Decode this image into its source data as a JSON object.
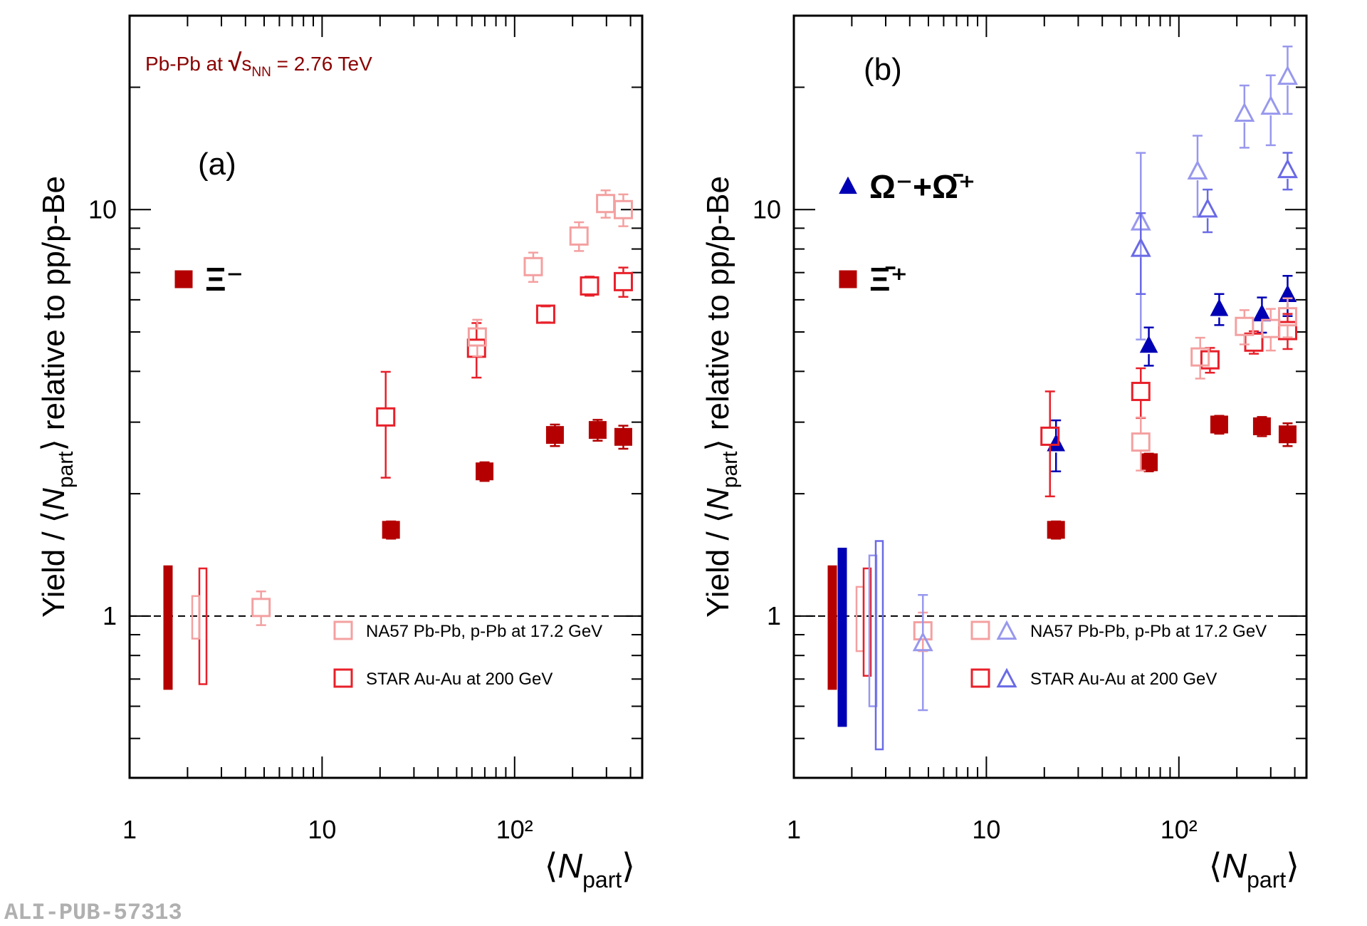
{
  "footer": "ALI-PUB-57313",
  "chart_data": [
    {
      "type": "scatter",
      "panel_label": "(a)",
      "annotation": [
        "Pb-Pb at ",
        "√",
        "s",
        "NN",
        " = 2.76 TeV"
      ],
      "xlabel": [
        "⟨",
        "N",
        "part",
        "⟩"
      ],
      "ylabel": [
        "Yield / ⟨",
        "N",
        "part",
        "⟩ relative to pp/p-Be"
      ],
      "log_x": true,
      "log_y": true,
      "xlim": [
        1,
        460
      ],
      "ylim": [
        0.4,
        30
      ],
      "xticks": [
        1,
        10,
        {
          "value": 100,
          "label": "10²"
        }
      ],
      "yticks": [
        1,
        10
      ],
      "xminor_ticks": [
        2,
        3,
        4,
        5,
        6,
        7,
        8,
        9,
        20,
        30,
        40,
        50,
        60,
        70,
        80,
        90,
        200,
        300,
        400
      ],
      "yminor_ticks": [
        0.5,
        0.6,
        0.7,
        0.8,
        0.9,
        2,
        3,
        4,
        5,
        6,
        7,
        8,
        9,
        20
      ],
      "reference_line": 1,
      "normalization": [
        {
          "color": "#b40000",
          "filled": true,
          "low": 0.66,
          "high": 1.33
        },
        {
          "color": "#e8202a",
          "filled": false,
          "low": 0.68,
          "high": 1.31
        },
        {
          "color": "#f4a0a0",
          "filled": false,
          "low": 0.88,
          "high": 1.12
        }
      ],
      "series": [
        {
          "name": "Ξ⁻",
          "color": "#b40000",
          "marker": "square",
          "filled": true,
          "x": [
            22.8,
            69.8,
            162,
            270,
            367
          ],
          "values": [
            1.63,
            2.27,
            2.79,
            2.87,
            2.76
          ],
          "errors": [
            0.08,
            0.12,
            0.17,
            0.17,
            0.18
          ]
        },
        {
          "name": "STAR Au-Au at 200 GeV",
          "color": "#e8202a",
          "marker": "square",
          "filled": false,
          "x": [
            21.4,
            63.4,
            145,
            245,
            367
          ],
          "values": [
            3.09,
            4.56,
            5.53,
            6.49,
            6.65
          ],
          "errors": [
            0.9,
            0.7,
            0.25,
            0.35,
            0.55
          ]
        },
        {
          "name": "NA57 Pb-Pb, p-Pb at 17.2 GeV",
          "color": "#f4a0a0",
          "marker": "square",
          "filled": false,
          "x": [
            4.82,
            64,
            125,
            216,
            297,
            367
          ],
          "values": [
            1.05,
            4.86,
            7.24,
            8.61,
            10.35,
            10.0
          ],
          "errors": [
            0.1,
            0.5,
            0.6,
            0.7,
            0.8,
            0.9
          ]
        }
      ]
    },
    {
      "type": "scatter",
      "panel_label": "(b)",
      "xlabel": [
        "⟨",
        "N",
        "part",
        "⟩"
      ],
      "ylabel": [
        "Yield / ⟨",
        "N",
        "part",
        "⟩ relative to pp/p-Be"
      ],
      "log_x": true,
      "log_y": true,
      "xlim": [
        1,
        460
      ],
      "ylim": [
        0.4,
        30
      ],
      "xticks": [
        1,
        10,
        {
          "value": 100,
          "label": "10²"
        }
      ],
      "yticks": [
        1,
        10
      ],
      "xminor_ticks": [
        2,
        3,
        4,
        5,
        6,
        7,
        8,
        9,
        20,
        30,
        40,
        50,
        60,
        70,
        80,
        90,
        200,
        300,
        400
      ],
      "yminor_ticks": [
        0.5,
        0.6,
        0.7,
        0.8,
        0.9,
        2,
        3,
        4,
        5,
        6,
        7,
        8,
        9,
        20
      ],
      "reference_line": 1,
      "normalization": [
        {
          "color": "#b40000",
          "filled": true,
          "low": 0.66,
          "high": 1.33
        },
        {
          "color": "#0000b4",
          "filled": true,
          "low": 0.535,
          "high": 1.47
        },
        {
          "color": "#f4a0a0",
          "filled": false,
          "low": 0.82,
          "high": 1.18
        },
        {
          "color": "#e8202a",
          "filled": false,
          "low": 0.713,
          "high": 1.31
        },
        {
          "color": "#9898ee",
          "filled": false,
          "low": 0.6,
          "high": 1.41
        },
        {
          "color": "#6a6ae6",
          "filled": false,
          "low": 0.47,
          "high": 1.53
        }
      ],
      "series": [
        {
          "name": "Ω⁻+Ω̄⁺",
          "color": "#0000b4",
          "marker": "triangle",
          "filled": true,
          "x": [
            23,
            69.8,
            162,
            270,
            367
          ],
          "values": [
            2.65,
            4.63,
            5.7,
            5.53,
            6.17
          ],
          "errors": [
            0.38,
            0.5,
            0.5,
            0.55,
            0.7
          ]
        },
        {
          "name": "Ξ̄⁺",
          "color": "#b40000",
          "marker": "square",
          "filled": true,
          "x": [
            23,
            69.8,
            162,
            270,
            367
          ],
          "values": [
            1.63,
            2.39,
            2.96,
            2.93,
            2.8
          ],
          "errors": [
            0.08,
            0.12,
            0.15,
            0.16,
            0.18
          ]
        },
        {
          "name": "STAR Au-Au at 200 GeV",
          "color": "#e8202a",
          "marker": "square",
          "filled": false,
          "x": [
            21.4,
            63.4,
            145,
            245,
            367
          ],
          "values": [
            2.77,
            3.57,
            4.27,
            4.72,
            5.04
          ],
          "errors": [
            0.8,
            0.5,
            0.3,
            0.3,
            0.5
          ]
        },
        {
          "name": "NA57 Pb-Pb, p-Pb at 17.2 GeV",
          "color": "#f4a0a0",
          "marker": "square",
          "filled": false,
          "x": [
            4.68,
            63.4,
            129,
            219,
            300,
            367
          ],
          "values": [
            0.92,
            2.68,
            4.34,
            5.16,
            5.1,
            5.45
          ],
          "errors": [
            0.1,
            0.4,
            0.5,
            0.5,
            0.6,
            0.6
          ]
        },
        {
          "color": "#9898ee",
          "marker": "triangle",
          "filled": false,
          "x": [
            4.68,
            63.4,
            125,
            219,
            300,
            367
          ],
          "values": [
            0.857,
            9.29,
            12.4,
            17.2,
            17.9,
            21.2
          ],
          "errors": [
            0.27,
            4.5,
            2.8,
            3,
            3.5,
            4
          ]
        },
        {
          "color": "#6a6ae6",
          "marker": "triangle",
          "filled": false,
          "x": [
            63.4,
            141,
            367
          ],
          "values": [
            8.0,
            10.0,
            12.5
          ],
          "errors": [
            1.8,
            1.2,
            1.3
          ]
        }
      ]
    }
  ]
}
